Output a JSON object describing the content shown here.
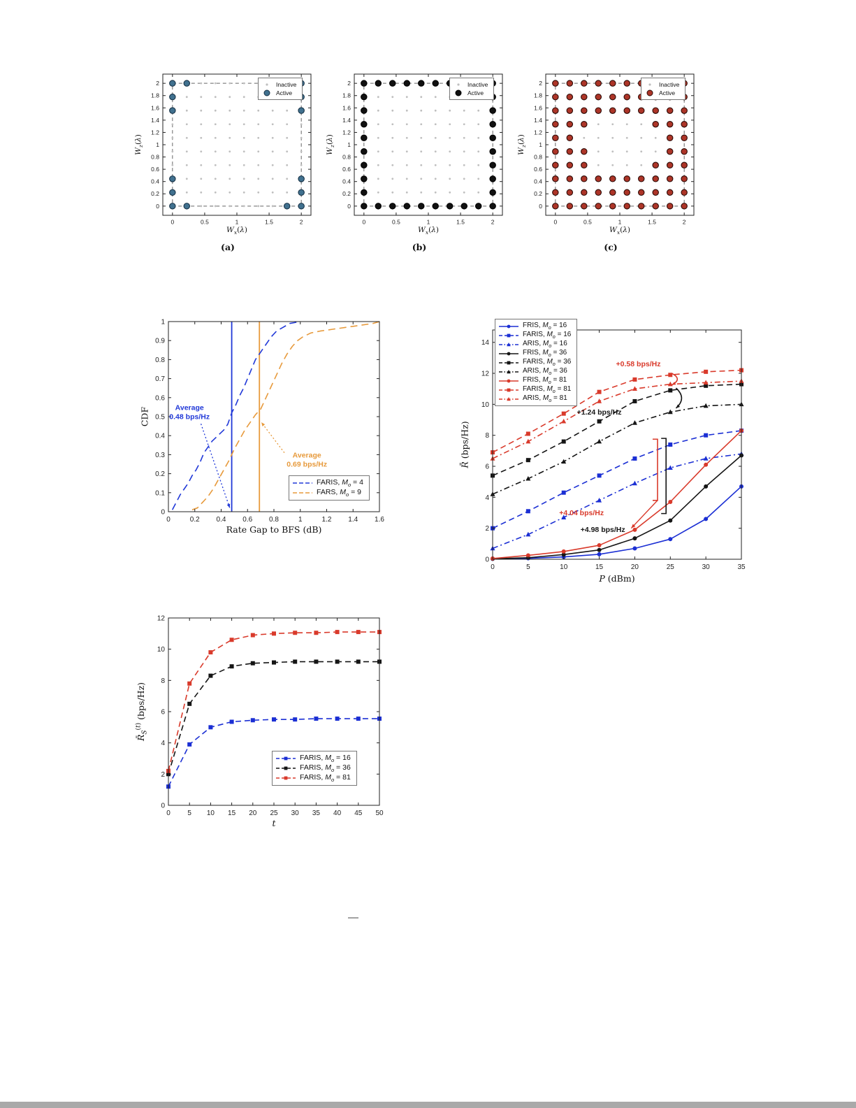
{
  "page": {
    "background": "#ffffff",
    "footer_dash": "—"
  },
  "chart_data": [
    {
      "id": "scatter-a",
      "type": "scatter",
      "caption": "(a)",
      "xlabel": "W_x(λ)",
      "ylabel": "W_z(λ)",
      "xlim": [
        -0.15,
        2.15
      ],
      "ylim": [
        -0.15,
        2.15
      ],
      "xticks": [
        0,
        0.5,
        1,
        1.5,
        2
      ],
      "yticks": [
        0,
        0.2,
        0.4,
        0.6,
        0.8,
        1,
        1.2,
        1.4,
        1.6,
        1.8,
        2
      ],
      "grid": {
        "min": 0,
        "max": 2,
        "count": 10
      },
      "legend": {
        "inactive_label": "Inactive",
        "active_label": "Active"
      },
      "colors": {
        "inactive": "#bfbfbf",
        "active_fill": "#41718f",
        "active_stroke": "#173246"
      },
      "active_mode": "list",
      "active_points": [
        [
          0,
          0
        ],
        [
          0,
          0.222
        ],
        [
          0,
          0.444
        ],
        [
          0,
          1.556
        ],
        [
          0,
          1.778
        ],
        [
          0,
          2
        ],
        [
          0.222,
          2
        ],
        [
          1.556,
          2
        ],
        [
          2,
          2
        ],
        [
          2,
          1.778
        ],
        [
          2,
          1.556
        ],
        [
          2,
          0.444
        ],
        [
          2,
          0.222
        ],
        [
          2,
          0
        ],
        [
          1.778,
          0
        ],
        [
          0.222,
          0
        ]
      ]
    },
    {
      "id": "scatter-b",
      "type": "scatter",
      "caption": "(b)",
      "xlabel": "W_x(λ)",
      "ylabel": "W_z(λ)",
      "xlim": [
        -0.15,
        2.15
      ],
      "ylim": [
        -0.15,
        2.15
      ],
      "xticks": [
        0,
        0.5,
        1,
        1.5,
        2
      ],
      "yticks": [
        0,
        0.2,
        0.4,
        0.6,
        0.8,
        1,
        1.2,
        1.4,
        1.6,
        1.8,
        2
      ],
      "grid": {
        "min": 0,
        "max": 2,
        "count": 10
      },
      "legend": {
        "inactive_label": "Inactive",
        "active_label": "Active"
      },
      "colors": {
        "inactive": "#bfbfbf",
        "active_fill": "#111111",
        "active_stroke": "#000000"
      },
      "active_mode": "list",
      "active_points": [
        [
          0,
          2
        ],
        [
          0.222,
          2
        ],
        [
          0.444,
          2
        ],
        [
          0.667,
          2
        ],
        [
          0.889,
          2
        ],
        [
          1.111,
          2
        ],
        [
          1.333,
          2
        ],
        [
          1.556,
          2
        ],
        [
          1.778,
          2
        ],
        [
          2,
          2
        ],
        [
          0,
          0
        ],
        [
          0.222,
          0
        ],
        [
          0.444,
          0
        ],
        [
          0.667,
          0
        ],
        [
          0.889,
          0
        ],
        [
          1.111,
          0
        ],
        [
          1.333,
          0
        ],
        [
          1.556,
          0
        ],
        [
          1.778,
          0
        ],
        [
          2,
          0
        ],
        [
          0,
          0.222
        ],
        [
          0,
          0.444
        ],
        [
          0,
          0.667
        ],
        [
          0,
          0.889
        ],
        [
          0,
          1.111
        ],
        [
          0,
          1.333
        ],
        [
          0,
          1.556
        ],
        [
          0,
          1.778
        ],
        [
          2,
          0.222
        ],
        [
          2,
          0.444
        ],
        [
          2,
          0.667
        ],
        [
          2,
          0.889
        ],
        [
          2,
          1.111
        ],
        [
          2,
          1.333
        ],
        [
          2,
          1.556
        ],
        [
          2,
          1.778
        ]
      ]
    },
    {
      "id": "scatter-c",
      "type": "scatter",
      "caption": "(c)",
      "xlabel": "W_x(λ)",
      "ylabel": "W_z(λ)",
      "xlim": [
        -0.15,
        2.15
      ],
      "ylim": [
        -0.15,
        2.15
      ],
      "xticks": [
        0,
        0.5,
        1,
        1.5,
        2
      ],
      "yticks": [
        0,
        0.2,
        0.4,
        0.6,
        0.8,
        1,
        1.2,
        1.4,
        1.6,
        1.8,
        2
      ],
      "grid": {
        "min": 0,
        "max": 2,
        "count": 10
      },
      "legend": {
        "inactive_label": "Inactive",
        "active_label": "Active"
      },
      "colors": {
        "inactive": "#bfbfbf",
        "active_fill": "#ad3528",
        "active_stroke": "#2b0a06"
      },
      "active_mode": "complement",
      "inactive_points": [
        [
          0.667,
          0.667
        ],
        [
          0.889,
          0.667
        ],
        [
          1.111,
          0.667
        ],
        [
          1.333,
          0.667
        ],
        [
          0.667,
          0.889
        ],
        [
          0.889,
          0.889
        ],
        [
          1.111,
          0.889
        ],
        [
          1.333,
          0.889
        ],
        [
          0.667,
          1.111
        ],
        [
          0.889,
          1.111
        ],
        [
          1.111,
          1.111
        ],
        [
          1.333,
          1.111
        ],
        [
          0.667,
          1.333
        ],
        [
          0.889,
          1.333
        ],
        [
          1.111,
          1.333
        ],
        [
          1.333,
          1.333
        ],
        [
          0.444,
          1.111
        ],
        [
          1.556,
          0.889
        ],
        [
          1.556,
          1.111
        ]
      ]
    },
    {
      "id": "cdf",
      "type": "line",
      "xlabel": "Rate Gap to BFS (dB)",
      "ylabel": "CDF",
      "xlim": [
        0,
        1.6
      ],
      "ylim": [
        0,
        1
      ],
      "xticks": [
        0,
        0.2,
        0.4,
        0.6,
        0.8,
        1,
        1.2,
        1.4,
        1.6
      ],
      "yticks": [
        0,
        0.1,
        0.2,
        0.3,
        0.4,
        0.5,
        0.6,
        0.7,
        0.8,
        0.9,
        1
      ],
      "legend_pos": "bottom-right",
      "series": [
        {
          "name": "FARIS, M_o = 4",
          "color": "#2038d8",
          "line": "longdash",
          "marker": "none",
          "x": [
            0.03,
            0.06,
            0.09,
            0.12,
            0.15,
            0.18,
            0.21,
            0.24,
            0.27,
            0.3,
            0.33,
            0.36,
            0.39,
            0.42,
            0.45,
            0.48,
            0.51,
            0.54,
            0.57,
            0.6,
            0.63,
            0.66,
            0.7,
            0.74,
            0.78,
            0.82,
            0.87,
            0.92,
            1.0
          ],
          "y": [
            0.01,
            0.05,
            0.09,
            0.12,
            0.15,
            0.19,
            0.22,
            0.26,
            0.31,
            0.34,
            0.37,
            0.39,
            0.41,
            0.43,
            0.46,
            0.52,
            0.56,
            0.61,
            0.65,
            0.7,
            0.75,
            0.8,
            0.84,
            0.88,
            0.92,
            0.95,
            0.97,
            0.99,
            1.0
          ]
        },
        {
          "name": "FARS, M_o = 9",
          "color": "#e79a3c",
          "line": "longdash",
          "marker": "none",
          "x": [
            0.18,
            0.22,
            0.26,
            0.3,
            0.34,
            0.38,
            0.42,
            0.46,
            0.5,
            0.54,
            0.58,
            0.62,
            0.66,
            0.7,
            0.74,
            0.78,
            0.82,
            0.86,
            0.9,
            0.94,
            0.98,
            1.02,
            1.08,
            1.15,
            1.25,
            1.35,
            1.45,
            1.55,
            1.6
          ],
          "y": [
            0.01,
            0.02,
            0.05,
            0.08,
            0.12,
            0.17,
            0.22,
            0.27,
            0.33,
            0.38,
            0.43,
            0.47,
            0.51,
            0.54,
            0.6,
            0.66,
            0.72,
            0.78,
            0.83,
            0.87,
            0.9,
            0.92,
            0.94,
            0.95,
            0.96,
            0.97,
            0.98,
            0.99,
            1.0
          ]
        }
      ],
      "vlines": [
        {
          "x": 0.48,
          "color": "#2038d8"
        },
        {
          "x": 0.69,
          "color": "#e79a3c"
        }
      ],
      "annotations": [
        {
          "text": "Average\n0.48 bps/Hz",
          "color": "#2038d8",
          "x": 0.16,
          "y": 0.52,
          "arrow_to": [
            0.465,
            0.02
          ]
        },
        {
          "text": "Average\n0.69 bps/Hz",
          "color": "#e79a3c",
          "x": 1.05,
          "y": 0.27,
          "arrow_to": [
            0.705,
            0.47
          ]
        }
      ]
    },
    {
      "id": "rate",
      "type": "line",
      "xlabel": "P (dBm)",
      "ylabel": "R̄ (bps/Hz)",
      "xlim": [
        0,
        35
      ],
      "ylim": [
        0,
        14.8
      ],
      "xticks": [
        0,
        5,
        10,
        15,
        20,
        25,
        30,
        35
      ],
      "yticks": [
        0,
        2,
        4,
        6,
        8,
        10,
        12,
        14
      ],
      "legend_pos": "top-left",
      "x": [
        0,
        5,
        10,
        15,
        20,
        25,
        30,
        35
      ],
      "series": [
        {
          "name": "FRIS, M_o = 16",
          "color": "#1b2fd4",
          "line": "solid",
          "marker": "circle",
          "y": [
            0.02,
            0.06,
            0.15,
            0.32,
            0.7,
            1.3,
            2.6,
            4.7
          ]
        },
        {
          "name": "FARIS, M_o = 16",
          "color": "#1b2fd4",
          "line": "dash",
          "marker": "square",
          "y": [
            2.0,
            3.1,
            4.3,
            5.4,
            6.5,
            7.4,
            8.0,
            8.3
          ]
        },
        {
          "name": "ARIS, M_o = 16",
          "color": "#1b2fd4",
          "line": "dashdot",
          "marker": "triangle",
          "y": [
            0.7,
            1.6,
            2.7,
            3.8,
            4.9,
            5.9,
            6.5,
            6.8
          ]
        },
        {
          "name": "FRIS, M_o = 36",
          "color": "#151515",
          "line": "solid",
          "marker": "circle",
          "y": [
            0.03,
            0.1,
            0.3,
            0.6,
            1.35,
            2.5,
            4.7,
            6.7
          ]
        },
        {
          "name": "FARIS, M_o = 36",
          "color": "#151515",
          "line": "dash",
          "marker": "square",
          "y": [
            5.4,
            6.4,
            7.6,
            8.9,
            10.2,
            10.9,
            11.2,
            11.3
          ]
        },
        {
          "name": "ARIS, M_o = 36",
          "color": "#151515",
          "line": "dashdot",
          "marker": "triangle",
          "y": [
            4.2,
            5.2,
            6.3,
            7.6,
            8.8,
            9.5,
            9.9,
            10.0
          ]
        },
        {
          "name": "FRIS, M_o = 81",
          "color": "#d93a2b",
          "line": "solid",
          "marker": "circle",
          "y": [
            0.05,
            0.25,
            0.5,
            0.9,
            1.9,
            3.7,
            6.1,
            8.3
          ]
        },
        {
          "name": "FARIS, M_o = 81",
          "color": "#d93a2b",
          "line": "dash",
          "marker": "square",
          "y": [
            6.9,
            8.1,
            9.4,
            10.8,
            11.6,
            11.9,
            12.1,
            12.2
          ]
        },
        {
          "name": "ARIS, M_o = 81",
          "color": "#d93a2b",
          "line": "dashdot",
          "marker": "triangle",
          "y": [
            6.5,
            7.6,
            8.9,
            10.2,
            11.0,
            11.3,
            11.4,
            11.5
          ]
        }
      ],
      "annotations": [
        {
          "text": "+0.58 bps/Hz",
          "color": "#d93a2b",
          "x": 20.5,
          "y": 12.55
        },
        {
          "text": "+1.24 bps/Hz",
          "color": "#151515",
          "x": 15.0,
          "y": 9.45
        },
        {
          "text": "+4.04 bps/Hz",
          "color": "#d93a2b",
          "x": 12.5,
          "y": 2.95
        },
        {
          "text": "+4.98 bps/Hz",
          "color": "#151515",
          "x": 15.5,
          "y": 1.85
        }
      ],
      "brackets": [
        {
          "x": 23.2,
          "y_low": 3.8,
          "y_high": 7.75,
          "color": "#d93a2b",
          "arrow_to": [
            19.5,
            2.0
          ]
        },
        {
          "x": 24.4,
          "y_low": 2.95,
          "y_high": 7.8,
          "color": "#151515"
        }
      ],
      "arcs": [
        {
          "x": 25.8,
          "y_top": 11.05,
          "y_bot": 9.75,
          "color": "#151515"
        },
        {
          "x": 25.2,
          "y_top": 12.0,
          "y_bot": 11.25,
          "color": "#d93a2b"
        }
      ]
    },
    {
      "id": "conv",
      "type": "line",
      "xlabel": "t",
      "ylabel": "R̄_S^{(t)} (bps/Hz)",
      "xlim": [
        0,
        50
      ],
      "ylim": [
        0,
        12
      ],
      "xticks": [
        0,
        5,
        10,
        15,
        20,
        25,
        30,
        35,
        40,
        45,
        50
      ],
      "yticks": [
        0,
        2,
        4,
        6,
        8,
        10,
        12
      ],
      "legend_pos": "bottom-right",
      "x": [
        0,
        5,
        10,
        15,
        20,
        25,
        30,
        35,
        40,
        45,
        50
      ],
      "series": [
        {
          "name": "FARIS, M_o = 16",
          "color": "#1b2fd4",
          "line": "dash",
          "marker": "square",
          "y": [
            1.2,
            3.9,
            5.0,
            5.35,
            5.45,
            5.5,
            5.5,
            5.55,
            5.55,
            5.55,
            5.55
          ]
        },
        {
          "name": "FARIS, M_o = 36",
          "color": "#151515",
          "line": "dash",
          "marker": "square",
          "y": [
            2.0,
            6.5,
            8.3,
            8.9,
            9.1,
            9.15,
            9.2,
            9.2,
            9.2,
            9.2,
            9.2
          ]
        },
        {
          "name": "FARIS, M_o = 81",
          "color": "#d93a2b",
          "line": "dash",
          "marker": "square",
          "y": [
            2.2,
            7.8,
            9.8,
            10.6,
            10.9,
            11.0,
            11.05,
            11.05,
            11.1,
            11.1,
            11.1
          ]
        }
      ]
    }
  ]
}
